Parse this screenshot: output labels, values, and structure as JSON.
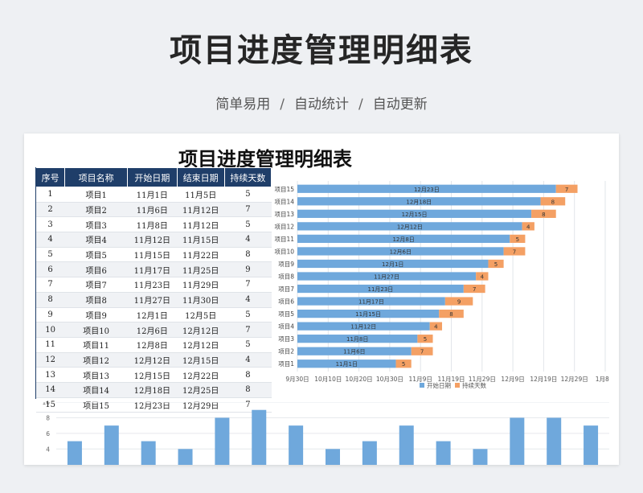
{
  "header": {
    "title": "项目进度管理明细表",
    "subtitle_items": [
      "简单易用",
      "自动统计",
      "自动更新"
    ],
    "separator": "/"
  },
  "sheet": {
    "title": "项目进度管理明细表",
    "columns": [
      "序号",
      "项目名称",
      "开始日期",
      "结束日期",
      "持续天数"
    ],
    "rows": [
      [
        "1",
        "项目1",
        "11月1日",
        "11月5日",
        "5"
      ],
      [
        "2",
        "项目2",
        "11月6日",
        "11月12日",
        "7"
      ],
      [
        "3",
        "项目3",
        "11月8日",
        "11月12日",
        "5"
      ],
      [
        "4",
        "项目4",
        "11月12日",
        "11月15日",
        "4"
      ],
      [
        "5",
        "项目5",
        "11月15日",
        "11月22日",
        "8"
      ],
      [
        "6",
        "项目6",
        "11月17日",
        "11月25日",
        "9"
      ],
      [
        "7",
        "项目7",
        "11月23日",
        "11月29日",
        "7"
      ],
      [
        "8",
        "项目8",
        "11月27日",
        "11月30日",
        "4"
      ],
      [
        "9",
        "项目9",
        "12月1日",
        "12月5日",
        "5"
      ],
      [
        "10",
        "项目10",
        "12月6日",
        "12月12日",
        "7"
      ],
      [
        "11",
        "项目11",
        "12月8日",
        "12月12日",
        "5"
      ],
      [
        "12",
        "项目12",
        "12月12日",
        "12月15日",
        "4"
      ],
      [
        "13",
        "项目13",
        "12月15日",
        "12月22日",
        "8"
      ],
      [
        "14",
        "项目14",
        "12月18日",
        "12月25日",
        "8"
      ],
      [
        "15",
        "项目15",
        "12月23日",
        "12月29日",
        "7"
      ]
    ]
  },
  "colors": {
    "header_bg": "#1f3e69",
    "start_bar": "#6fa8dc",
    "duration_bar": "#f4a064",
    "column_bar": "#6fa8dc"
  },
  "chart_data": [
    {
      "type": "bar",
      "orientation": "horizontal-stacked",
      "categories": [
        "项目1",
        "项目2",
        "项目3",
        "项目4",
        "项目5",
        "项目6",
        "项目7",
        "项目8",
        "项目9",
        "项目10",
        "项目11",
        "项目12",
        "项目13",
        "项目14",
        "项目15"
      ],
      "series": [
        {
          "name": "开始日期",
          "labels": [
            "11月1日",
            "11月6日",
            "11月8日",
            "11月12日",
            "11月15日",
            "11月17日",
            "11月23日",
            "11月27日",
            "12月1日",
            "12月6日",
            "12月8日",
            "12月12日",
            "12月15日",
            "12月18日",
            "12月23日"
          ],
          "values": [
            "2023-11-01",
            "2023-11-06",
            "2023-11-08",
            "2023-11-12",
            "2023-11-15",
            "2023-11-17",
            "2023-11-23",
            "2023-11-27",
            "2023-12-01",
            "2023-12-06",
            "2023-12-08",
            "2023-12-12",
            "2023-12-15",
            "2023-12-18",
            "2023-12-23"
          ]
        },
        {
          "name": "持续天数",
          "values": [
            5,
            7,
            5,
            4,
            8,
            9,
            7,
            4,
            5,
            7,
            5,
            4,
            8,
            8,
            7
          ]
        }
      ],
      "x_ticks": [
        "9月30日",
        "10月10日",
        "10月20日",
        "10月30日",
        "11月9日",
        "11月19日",
        "11月29日",
        "12月9日",
        "12月19日",
        "12月29日",
        "1月8日"
      ],
      "x_range": [
        "2023-09-30",
        "2024-01-08"
      ],
      "legend_position": "bottom"
    },
    {
      "type": "bar",
      "values": [
        5,
        7,
        5,
        4,
        8,
        9,
        7,
        4,
        5,
        7,
        5,
        4,
        8,
        8,
        7
      ],
      "y_ticks": [
        "4",
        "6",
        "8",
        "10"
      ],
      "ylim": [
        3,
        10
      ]
    }
  ]
}
